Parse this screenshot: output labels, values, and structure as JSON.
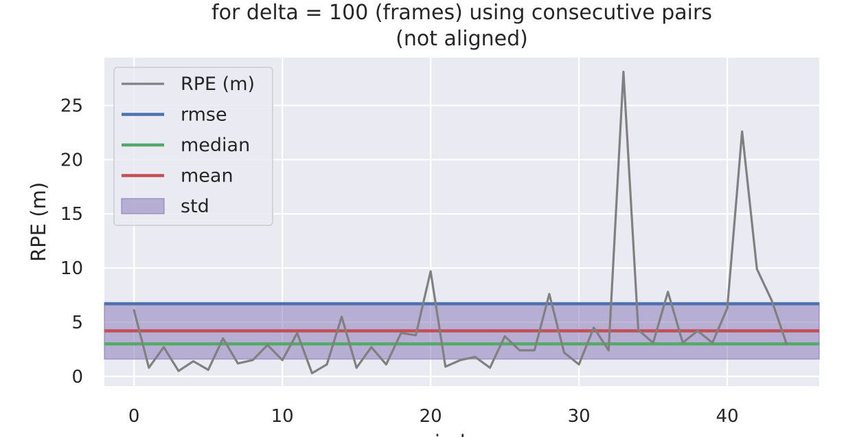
{
  "chart_data": {
    "type": "line",
    "title_line1": "for delta = 100 (frames) using consecutive pairs",
    "title_line2": "(not aligned)",
    "xlabel": "index",
    "ylabel": "RPE (m)",
    "xlim": [
      -2,
      46.2
    ],
    "ylim": [
      -0.9,
      29.4
    ],
    "xticks": [
      0,
      10,
      20,
      30,
      40
    ],
    "yticks": [
      0,
      5,
      10,
      15,
      20,
      25
    ],
    "grid": true,
    "legend_position": "upper-left",
    "series": [
      {
        "name": "RPE (m)",
        "color": "#808080",
        "x": [
          0,
          1,
          2,
          3,
          4,
          5,
          6,
          7,
          8,
          9,
          10,
          11,
          12,
          13,
          14,
          15,
          16,
          17,
          18,
          19,
          20,
          21,
          22,
          23,
          24,
          25,
          26,
          27,
          28,
          29,
          30,
          31,
          32,
          33,
          34,
          35,
          36,
          37,
          38,
          39,
          40,
          41,
          42,
          43,
          44
        ],
        "y": [
          6.1,
          0.8,
          2.7,
          0.5,
          1.4,
          0.6,
          3.5,
          1.2,
          1.5,
          2.9,
          1.5,
          4.0,
          0.3,
          1.1,
          5.5,
          0.8,
          2.7,
          1.1,
          4.0,
          3.8,
          9.7,
          0.9,
          1.5,
          1.8,
          0.8,
          3.7,
          2.4,
          2.4,
          7.6,
          2.2,
          1.1,
          4.5,
          2.4,
          28.1,
          4.3,
          3.1,
          7.8,
          3.1,
          4.2,
          3.1,
          6.3,
          22.6,
          9.9,
          7.0,
          3.0
        ]
      }
    ],
    "stats": {
      "rmse": 6.7,
      "median": 3.0,
      "mean": 4.2,
      "std_low": 1.6,
      "std_high": 6.8
    },
    "legend": [
      {
        "label": "RPE (m)",
        "kind": "line",
        "color": "#808080"
      },
      {
        "label": "rmse",
        "kind": "line",
        "color": "#4c72b0"
      },
      {
        "label": "median",
        "kind": "line",
        "color": "#55a868"
      },
      {
        "label": "mean",
        "kind": "line",
        "color": "#c44e52"
      },
      {
        "label": "std",
        "kind": "patch",
        "color": "#8172b3"
      }
    ],
    "colors": {
      "rmse": "#4c72b0",
      "median": "#55a868",
      "mean": "#c44e52",
      "std": "#8172b3",
      "background": "#eaeaf2",
      "grid": "#ffffff"
    }
  }
}
